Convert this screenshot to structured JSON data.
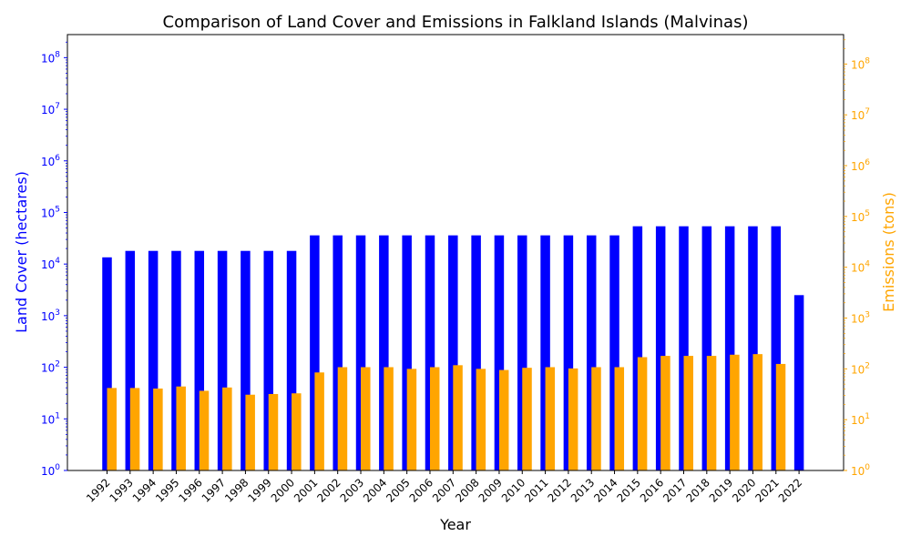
{
  "chart_data": {
    "type": "bar",
    "title": "Comparison of Land Cover and Emissions in Falkland Islands (Malvinas)",
    "xlabel": "Year",
    "ylabel_left": "Land Cover (hectares)",
    "ylabel_right": "Emissions (tons)",
    "yscale": "log",
    "ylim_left": [
      1,
      280000000
    ],
    "ylim_right": [
      1,
      380000000
    ],
    "grid": false,
    "categories": [
      "1992",
      "1993",
      "1994",
      "1995",
      "1996",
      "1997",
      "1998",
      "1999",
      "2000",
      "2001",
      "2002",
      "2003",
      "2004",
      "2005",
      "2006",
      "2007",
      "2008",
      "2009",
      "2010",
      "2011",
      "2012",
      "2013",
      "2014",
      "2015",
      "2016",
      "2017",
      "2018",
      "2019",
      "2020",
      "2021",
      "2022"
    ],
    "series": [
      {
        "name": "",
        "axis": "left",
        "color": "#0000ff",
        "values": [
          13500,
          18000,
          18000,
          18000,
          18000,
          18000,
          18000,
          18000,
          18000,
          36000,
          36000,
          36000,
          36000,
          36000,
          36000,
          36000,
          36000,
          36000,
          36000,
          36000,
          36000,
          36000,
          36000,
          54000,
          54000,
          54000,
          54000,
          54000,
          54000,
          54000,
          2500
        ]
      },
      {
        "name": "",
        "axis": "right",
        "color": "#ffa500",
        "values": [
          42,
          42,
          41,
          45,
          37,
          43,
          31,
          32,
          33,
          85,
          108,
          108,
          108,
          100,
          108,
          118,
          100,
          95,
          105,
          108,
          102,
          108,
          108,
          170,
          180,
          180,
          180,
          190,
          195,
          125,
          null
        ]
      }
    ],
    "left_ticks": [
      "10^0",
      "10^1",
      "10^2",
      "10^3",
      "10^4",
      "10^5",
      "10^6",
      "10^7",
      "10^8"
    ],
    "right_ticks": [
      "10^0",
      "10^1",
      "10^2",
      "10^3",
      "10^4",
      "10^5",
      "10^6",
      "10^7",
      "10^8"
    ],
    "left_axis_color": "#0000ff",
    "right_axis_color": "#ffa500"
  }
}
